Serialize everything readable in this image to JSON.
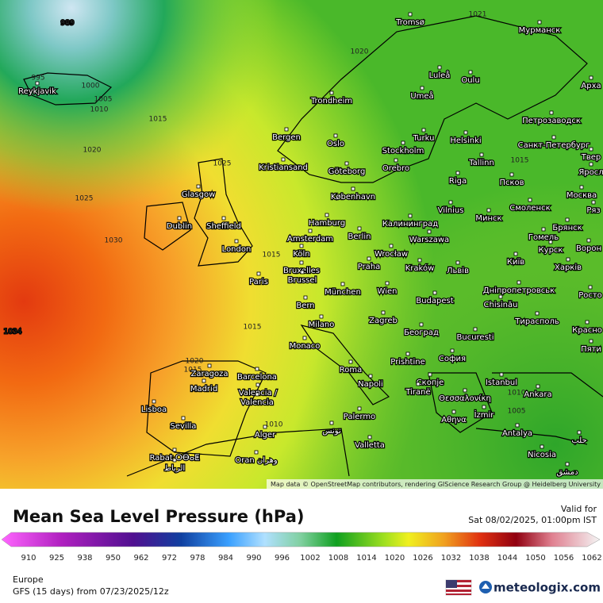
{
  "map": {
    "attribution": "Map data © OpenStreetMap contributors, rendering GIScience Research Group @ Heidelberg University",
    "isobar_labels": [
      989,
      995,
      1000,
      1005,
      1010,
      1015,
      1020,
      1025,
      1030,
      1034,
      1025,
      1020,
      1021,
      1015,
      1010,
      1015,
      1015,
      1020,
      1015,
      1010,
      1005
    ],
    "cities": [
      "Reykjavik",
      "Tromsø",
      "Мурманск",
      "Luleå",
      "Oulu",
      "Арха",
      "Trondheim",
      "Umeå",
      "Петрозаводск",
      "Bergen",
      "Oslo",
      "Turku",
      "Helsinki",
      "Санкт-Петербург",
      "Stockholm",
      "Orebro",
      "Kristiansand",
      "Göteborg",
      "Tallinn",
      "Твер",
      "Яросл",
      "Riga",
      "Псков",
      "København",
      "Москва",
      "Vilnius",
      "Смоленск",
      "Ряз",
      "Glasgow",
      "Hamburg",
      "Калининград",
      "Минск",
      "Брянск",
      "Dublin",
      "Sheffield",
      "Amsterdam",
      "Berlin",
      "Warszawa",
      "Гомель",
      "Ворон",
      "London",
      "Köln",
      "Wrocław",
      "Курск",
      "Bruxelles",
      "Brussel",
      "Praha",
      "Kraków",
      "Львів",
      "Київ",
      "Харків",
      "Paris",
      "München",
      "Wien",
      "Дніпропетровськ",
      "Росто",
      "Budapest",
      "Chisinău",
      "Bern",
      "Тирасполь",
      "Milano",
      "Zagreb",
      "Красно",
      "Београд",
      "Bucuresti",
      "Monaco",
      "Пяти",
      "София",
      "Prishtine",
      "Roma",
      "Istanbul",
      "Zaragoza",
      "Barcelona",
      "Madrid",
      "Napoli",
      "Скопје",
      "Tiranë",
      "Θεσσαλονίκη",
      "Ankara",
      "Valencia /",
      "Valencia",
      "Lisboa",
      "İzmir",
      "Αθηνα",
      "Palermo",
      "Sevilla",
      "Alger",
      "تونس",
      "Antalya",
      "حلب",
      "Valletta",
      "Rabat ⵔⴱⴰⵟ",
      "الرباط",
      "Oran وهران",
      "Nicosia",
      "دمشق"
    ]
  },
  "footer": {
    "title": "Mean Sea Level Pressure (hPa)",
    "valid_label": "Valid for",
    "valid_time": "Sat 08/02/2025, 01:00pm IST",
    "scale_ticks": [
      910,
      925,
      938,
      950,
      962,
      972,
      978,
      984,
      990,
      996,
      1002,
      1008,
      1014,
      1020,
      1026,
      1032,
      1038,
      1044,
      1050,
      1056,
      1062
    ],
    "region": "Europe",
    "model": "GFS (15 days) from  07/23/2025/12z",
    "brand": "meteologix.com"
  }
}
